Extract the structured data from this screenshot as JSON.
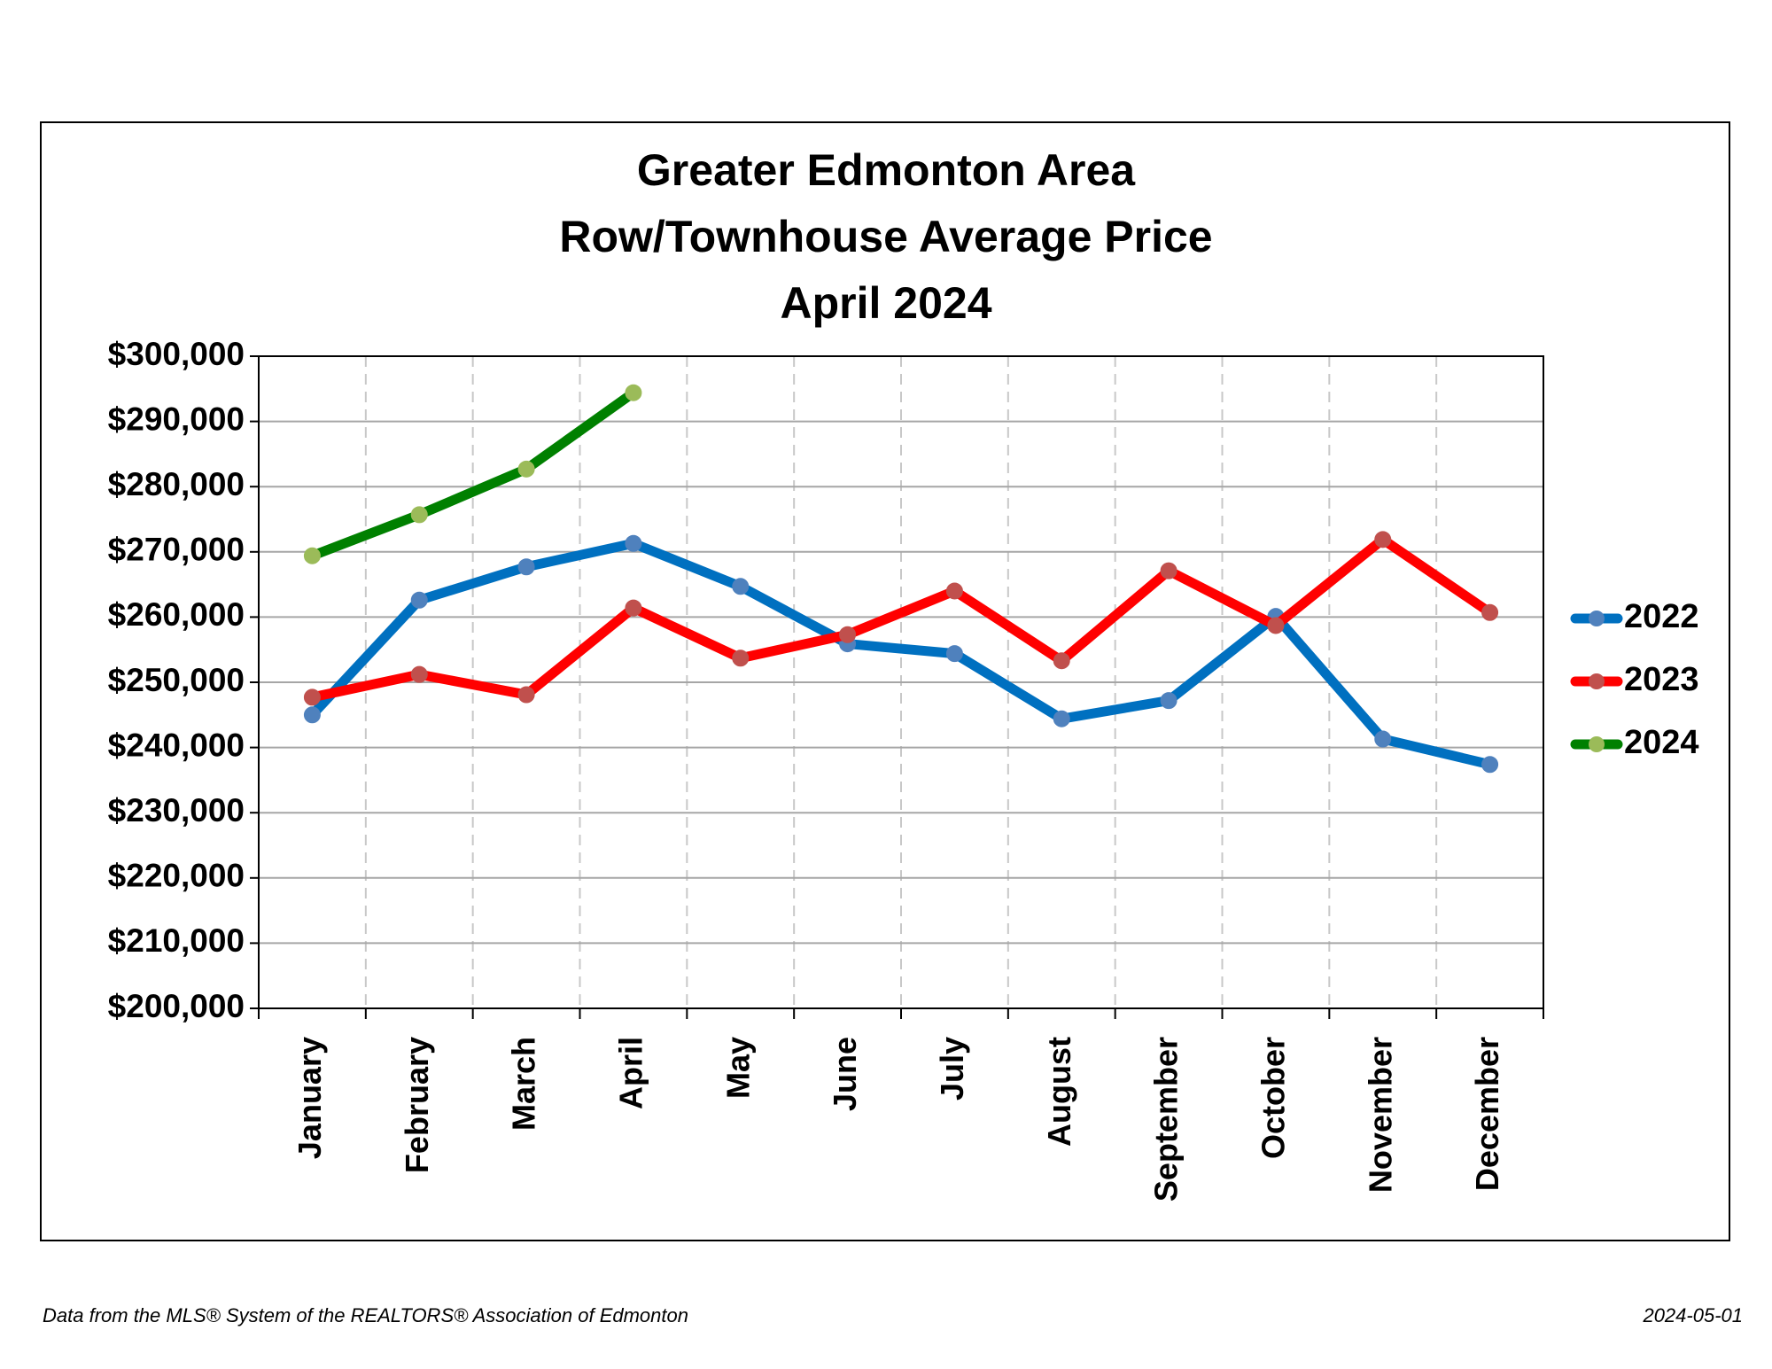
{
  "chart_data": {
    "type": "line",
    "title": [
      "Greater Edmonton Area",
      "Row/Townhouse Average Price",
      "April 2024"
    ],
    "categories": [
      "January",
      "February",
      "March",
      "April",
      "May",
      "June",
      "July",
      "August",
      "September",
      "October",
      "November",
      "December"
    ],
    "series": [
      {
        "name": "2022",
        "color": "#0070c0",
        "marker_color": "#4f81bd",
        "values": [
          245000,
          262600,
          267700,
          271300,
          264700,
          255900,
          254400,
          244400,
          247200,
          260100,
          241300,
          237400
        ]
      },
      {
        "name": "2023",
        "color": "#ff0000",
        "marker_color": "#c0504d",
        "values": [
          247700,
          251200,
          248100,
          261400,
          253700,
          257300,
          264000,
          253300,
          267100,
          258700,
          271900,
          260700
        ]
      },
      {
        "name": "2024",
        "color": "#008000",
        "marker_color": "#9bbb59",
        "values": [
          269400,
          275700,
          282700,
          294400,
          null,
          null,
          null,
          null,
          null,
          null,
          null,
          null
        ]
      }
    ],
    "ylim": [
      200000,
      300000
    ],
    "yticks": [
      {
        "value": 200000,
        "label": "$200,000"
      },
      {
        "value": 210000,
        "label": "$210,000"
      },
      {
        "value": 220000,
        "label": "$220,000"
      },
      {
        "value": 230000,
        "label": "$230,000"
      },
      {
        "value": 240000,
        "label": "$240,000"
      },
      {
        "value": 250000,
        "label": "$250,000"
      },
      {
        "value": 260000,
        "label": "$260,000"
      },
      {
        "value": 270000,
        "label": "$270,000"
      },
      {
        "value": 280000,
        "label": "$280,000"
      },
      {
        "value": 290000,
        "label": "$290,000"
      },
      {
        "value": 300000,
        "label": "$300,000"
      }
    ],
    "grid": true,
    "legend": "right",
    "source": "Data from the MLS® System of the REALTORS® Association of Edmonton",
    "date": "2024-05-01"
  }
}
